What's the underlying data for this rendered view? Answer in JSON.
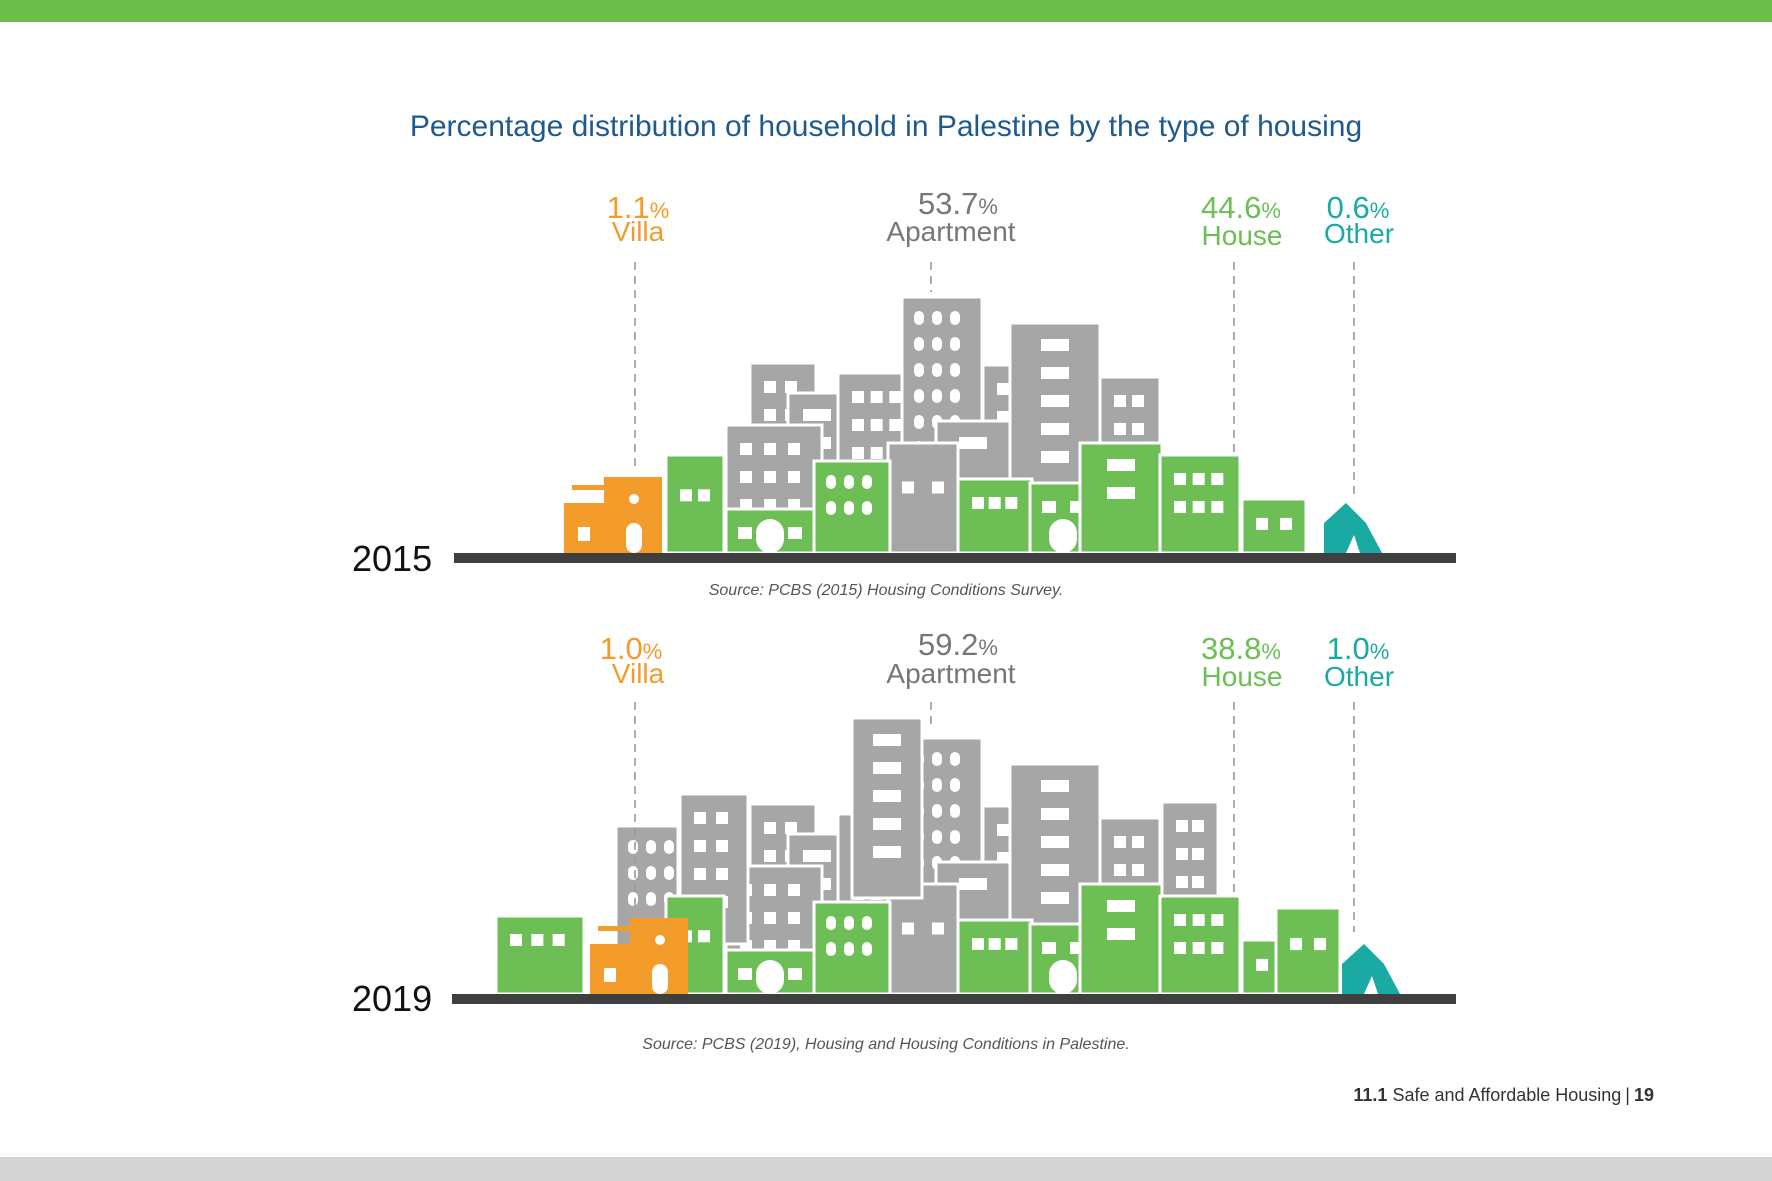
{
  "title": "Percentage distribution of household in Palestine by the type of housing",
  "colors": {
    "villa": "#f39b2b",
    "apartment": "#a6a6a6",
    "house": "#6cbe55",
    "other": "#1aaaa3",
    "ground": "#3f3f3f",
    "title": "#1f5a8f",
    "top_bar": "#6dbf4b",
    "bottom_bar": "#d4d4d4"
  },
  "chart_data": [
    {
      "type": "pictogram",
      "year": "2015",
      "categories": [
        "Villa",
        "Apartment",
        "House",
        "Other"
      ],
      "values": [
        1.1,
        53.7,
        44.6,
        0.6
      ],
      "labels": [
        {
          "value": "1.1",
          "unit": "%",
          "name": "Villa"
        },
        {
          "value": "53.7",
          "unit": "%",
          "name": "Apartment"
        },
        {
          "value": "44.6",
          "unit": "%",
          "name": "House"
        },
        {
          "value": "0.6",
          "unit": "%",
          "name": "Other"
        }
      ],
      "source": "Source: PCBS (2015) Housing Conditions Survey."
    },
    {
      "type": "pictogram",
      "year": "2019",
      "categories": [
        "Villa",
        "Apartment",
        "House",
        "Other"
      ],
      "values": [
        1.0,
        59.2,
        38.8,
        1.0
      ],
      "labels": [
        {
          "value": "1.0",
          "unit": "%",
          "name": "Villa"
        },
        {
          "value": "59.2",
          "unit": "%",
          "name": "Apartment"
        },
        {
          "value": "38.8",
          "unit": "%",
          "name": "House"
        },
        {
          "value": "1.0",
          "unit": "%",
          "name": "Other"
        }
      ],
      "source": "Source: PCBS (2019), Housing and Housing Conditions in Palestine."
    }
  ],
  "footer": {
    "section": "11.1",
    "text": "Safe and Affordable Housing",
    "separator": "|",
    "page": "19"
  }
}
